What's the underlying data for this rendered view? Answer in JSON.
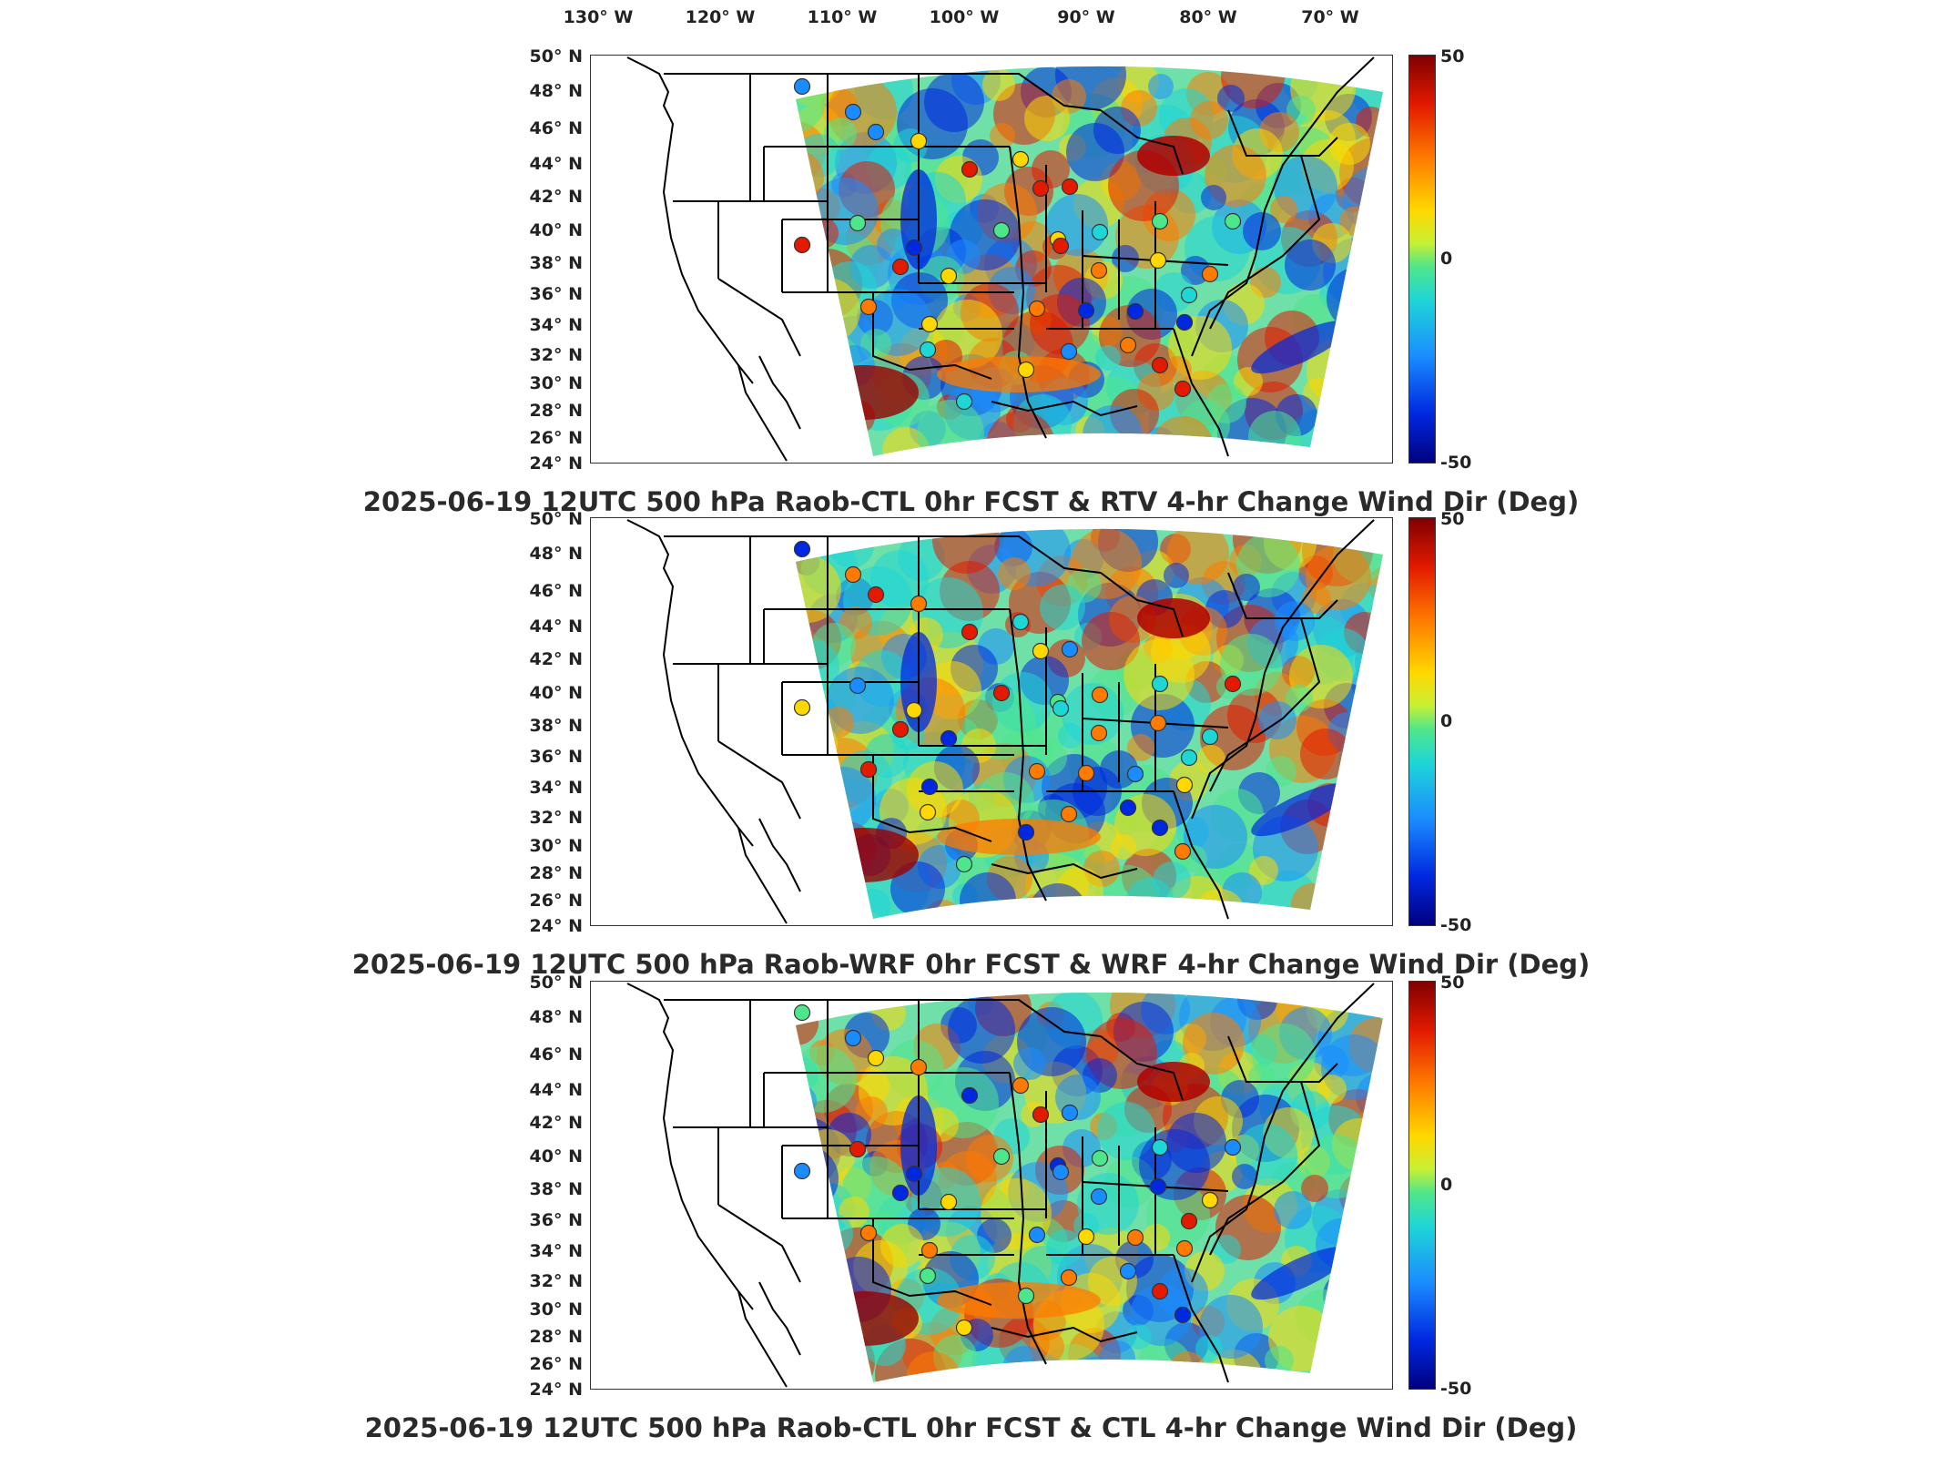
{
  "lon_labels": [
    "130° W",
    "120° W",
    "110° W",
    "100° W",
    "90° W",
    "80° W",
    "70° W"
  ],
  "lat_labels": [
    "50° N",
    "48° N",
    "46° N",
    "44° N",
    "42° N",
    "40° N",
    "38° N",
    "36° N",
    "34° N",
    "32° N",
    "30° N",
    "28° N",
    "26° N",
    "24° N"
  ],
  "colorbar": {
    "max_label": "50",
    "mid_label": "0",
    "min_label": "-50",
    "colormap": "jet",
    "range": [
      -50,
      50
    ]
  },
  "panels": [
    {
      "title": "2025-06-19 12UTC 500 hPa Raob-CTL 0hr FCST & RTV 4-hr Change Wind Dir (Deg)"
    },
    {
      "title": "2025-06-19 12UTC 500 hPa Raob-WRF 0hr FCST & WRF 4-hr Change Wind Dir (Deg)"
    },
    {
      "title": "2025-06-19 12UTC 500 hPa Raob-CTL 0hr FCST & CTL 4-hr Change Wind Dir (Deg)"
    }
  ],
  "colors": {
    "land": "#ffffff",
    "border": "#000000",
    "jet_red": "#e21a00",
    "jet_orange": "#ff7a00",
    "jet_yellow": "#ffd800",
    "jet_green": "#4ee68c",
    "jet_cyan": "#1fd6d6",
    "jet_blue": "#1a8cff",
    "jet_darkblue": "#0028e0"
  }
}
